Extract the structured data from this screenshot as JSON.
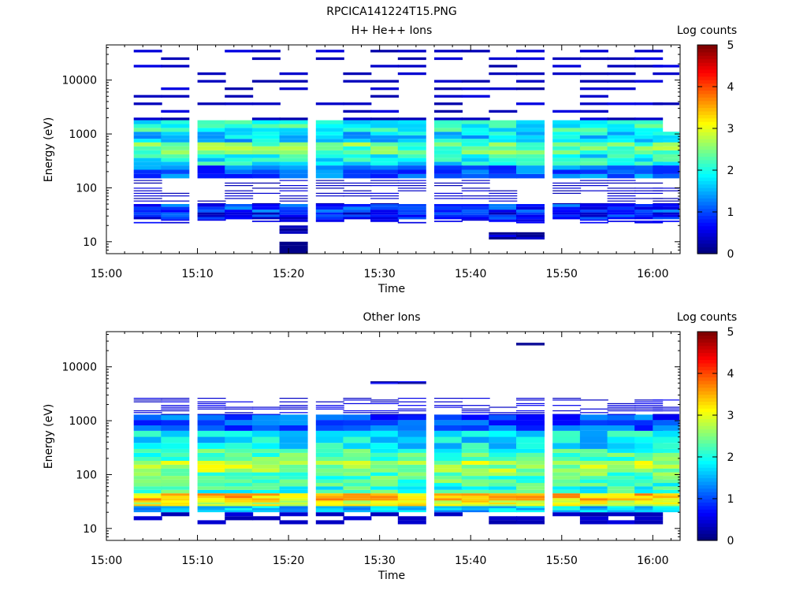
{
  "figure": {
    "filename": "RPCICA141224T15.PNG"
  },
  "chart_data": [
    {
      "type": "heatmap",
      "title": "H+ He++ Ions",
      "xlabel": "Time",
      "ylabel": "Energy (eV)",
      "x_scale": "time",
      "y_scale": "log",
      "xlim": [
        "15:00",
        "16:03"
      ],
      "ylim": [
        6,
        45000
      ],
      "x_ticks": [
        "15:00",
        "15:10",
        "15:20",
        "15:30",
        "15:40",
        "15:50",
        "16:00"
      ],
      "y_ticks": [
        "10",
        "100",
        "1000",
        "10000"
      ],
      "colorbar": {
        "label": "Log counts",
        "min": 0,
        "max": 5,
        "ticks": [
          "0",
          "1",
          "2",
          "3",
          "4",
          "5"
        ]
      },
      "time_bins": [
        "15:03",
        "15:06",
        "15:10",
        "15:13",
        "15:16",
        "15:19",
        "15:23",
        "15:26",
        "15:29",
        "15:32",
        "15:36",
        "15:39",
        "15:42",
        "15:45",
        "15:49",
        "15:52",
        "15:55",
        "15:58",
        "16:00"
      ],
      "series": [
        {
          "name": "H+ He++",
          "bands": [
            {
              "e_lo": 22,
              "e_hi": 26,
              "value": 0.4,
              "from": "15:03",
              "to": "16:00",
              "pattern": "sparse"
            },
            {
              "e_lo": 26,
              "e_hi": 35,
              "value": 0.7,
              "from": "15:03",
              "to": "16:00",
              "pattern": "dense"
            },
            {
              "e_lo": 35,
              "e_hi": 50,
              "value": 0.9,
              "from": "15:03",
              "to": "16:00",
              "pattern": "dense"
            },
            {
              "e_lo": 50,
              "e_hi": 150,
              "value": 0.2,
              "from": "15:03",
              "to": "16:00",
              "pattern": "lines"
            },
            {
              "e_lo": 150,
              "e_hi": 260,
              "value": 1.1,
              "from": "15:03",
              "to": "16:00",
              "pattern": "dense"
            },
            {
              "e_lo": 260,
              "e_hi": 420,
              "value": 1.9,
              "from": "15:03",
              "to": "16:00",
              "pattern": "dense"
            },
            {
              "e_lo": 420,
              "e_hi": 700,
              "value": 2.4,
              "from": "15:03",
              "to": "16:00",
              "pattern": "dense"
            },
            {
              "e_lo": 700,
              "e_hi": 1100,
              "value": 1.7,
              "from": "15:03",
              "to": "16:00",
              "pattern": "dense"
            },
            {
              "e_lo": 1100,
              "e_hi": 1800,
              "value": 2.0,
              "from": "15:03",
              "to": "15:58",
              "pattern": "dense"
            },
            {
              "e_lo": 1800,
              "e_hi": 45000,
              "value": 0.2,
              "from": "15:03",
              "to": "16:00",
              "pattern": "lines"
            },
            {
              "e_lo": 14,
              "e_hi": 20,
              "value": 0.1,
              "from": "15:19",
              "to": "15:22",
              "pattern": "dense"
            },
            {
              "e_lo": 6,
              "e_hi": 10,
              "value": 0.1,
              "from": "15:19",
              "to": "15:22",
              "pattern": "dense"
            },
            {
              "e_lo": 11,
              "e_hi": 15,
              "value": 0.1,
              "from": "15:42",
              "to": "15:45",
              "pattern": "dense"
            }
          ]
        }
      ]
    },
    {
      "type": "heatmap",
      "title": "Other Ions",
      "xlabel": "Time",
      "ylabel": "Energy (eV)",
      "x_scale": "time",
      "y_scale": "log",
      "xlim": [
        "15:00",
        "16:03"
      ],
      "ylim": [
        6,
        45000
      ],
      "x_ticks": [
        "15:00",
        "15:10",
        "15:20",
        "15:30",
        "15:40",
        "15:50",
        "16:00"
      ],
      "y_ticks": [
        "10",
        "100",
        "1000",
        "10000"
      ],
      "colorbar": {
        "label": "Log counts",
        "min": 0,
        "max": 5,
        "ticks": [
          "0",
          "1",
          "2",
          "3",
          "4",
          "5"
        ]
      },
      "time_bins": [
        "15:03",
        "15:06",
        "15:10",
        "15:13",
        "15:16",
        "15:19",
        "15:23",
        "15:26",
        "15:29",
        "15:32",
        "15:36",
        "15:39",
        "15:42",
        "15:45",
        "15:49",
        "15:52",
        "15:55",
        "15:58",
        "16:00"
      ],
      "series": [
        {
          "name": "Other",
          "bands": [
            {
              "e_lo": 12,
              "e_hi": 20,
              "value": 0.2,
              "from": "15:03",
              "to": "16:00",
              "pattern": "sparse"
            },
            {
              "e_lo": 20,
              "e_hi": 26,
              "value": 1.6,
              "from": "15:03",
              "to": "16:00",
              "pattern": "dense"
            },
            {
              "e_lo": 26,
              "e_hi": 33,
              "value": 3.0,
              "from": "15:03",
              "to": "16:00",
              "pattern": "dense"
            },
            {
              "e_lo": 33,
              "e_hi": 45,
              "value": 3.4,
              "from": "15:03",
              "to": "16:00",
              "pattern": "dense"
            },
            {
              "e_lo": 45,
              "e_hi": 70,
              "value": 2.1,
              "from": "15:03",
              "to": "16:00",
              "pattern": "dense"
            },
            {
              "e_lo": 70,
              "e_hi": 110,
              "value": 2.3,
              "from": "15:03",
              "to": "16:00",
              "pattern": "dense"
            },
            {
              "e_lo": 110,
              "e_hi": 180,
              "value": 2.7,
              "from": "15:03",
              "to": "16:00",
              "pattern": "dense"
            },
            {
              "e_lo": 180,
              "e_hi": 300,
              "value": 2.2,
              "from": "15:03",
              "to": "16:00",
              "pattern": "dense"
            },
            {
              "e_lo": 300,
              "e_hi": 650,
              "value": 1.8,
              "from": "15:03",
              "to": "16:00",
              "pattern": "dense"
            },
            {
              "e_lo": 650,
              "e_hi": 1300,
              "value": 1.0,
              "from": "15:03",
              "to": "16:00",
              "pattern": "dense"
            },
            {
              "e_lo": 1300,
              "e_hi": 2800,
              "value": 0.3,
              "from": "15:03",
              "to": "16:00",
              "pattern": "lines"
            },
            {
              "e_lo": 4800,
              "e_hi": 5400,
              "value": 0.3,
              "from": "15:29",
              "to": "15:32",
              "pattern": "dense"
            },
            {
              "e_lo": 25000,
              "e_hi": 28000,
              "value": 0.2,
              "from": "15:45",
              "to": "15:48",
              "pattern": "dense"
            }
          ]
        }
      ]
    }
  ]
}
